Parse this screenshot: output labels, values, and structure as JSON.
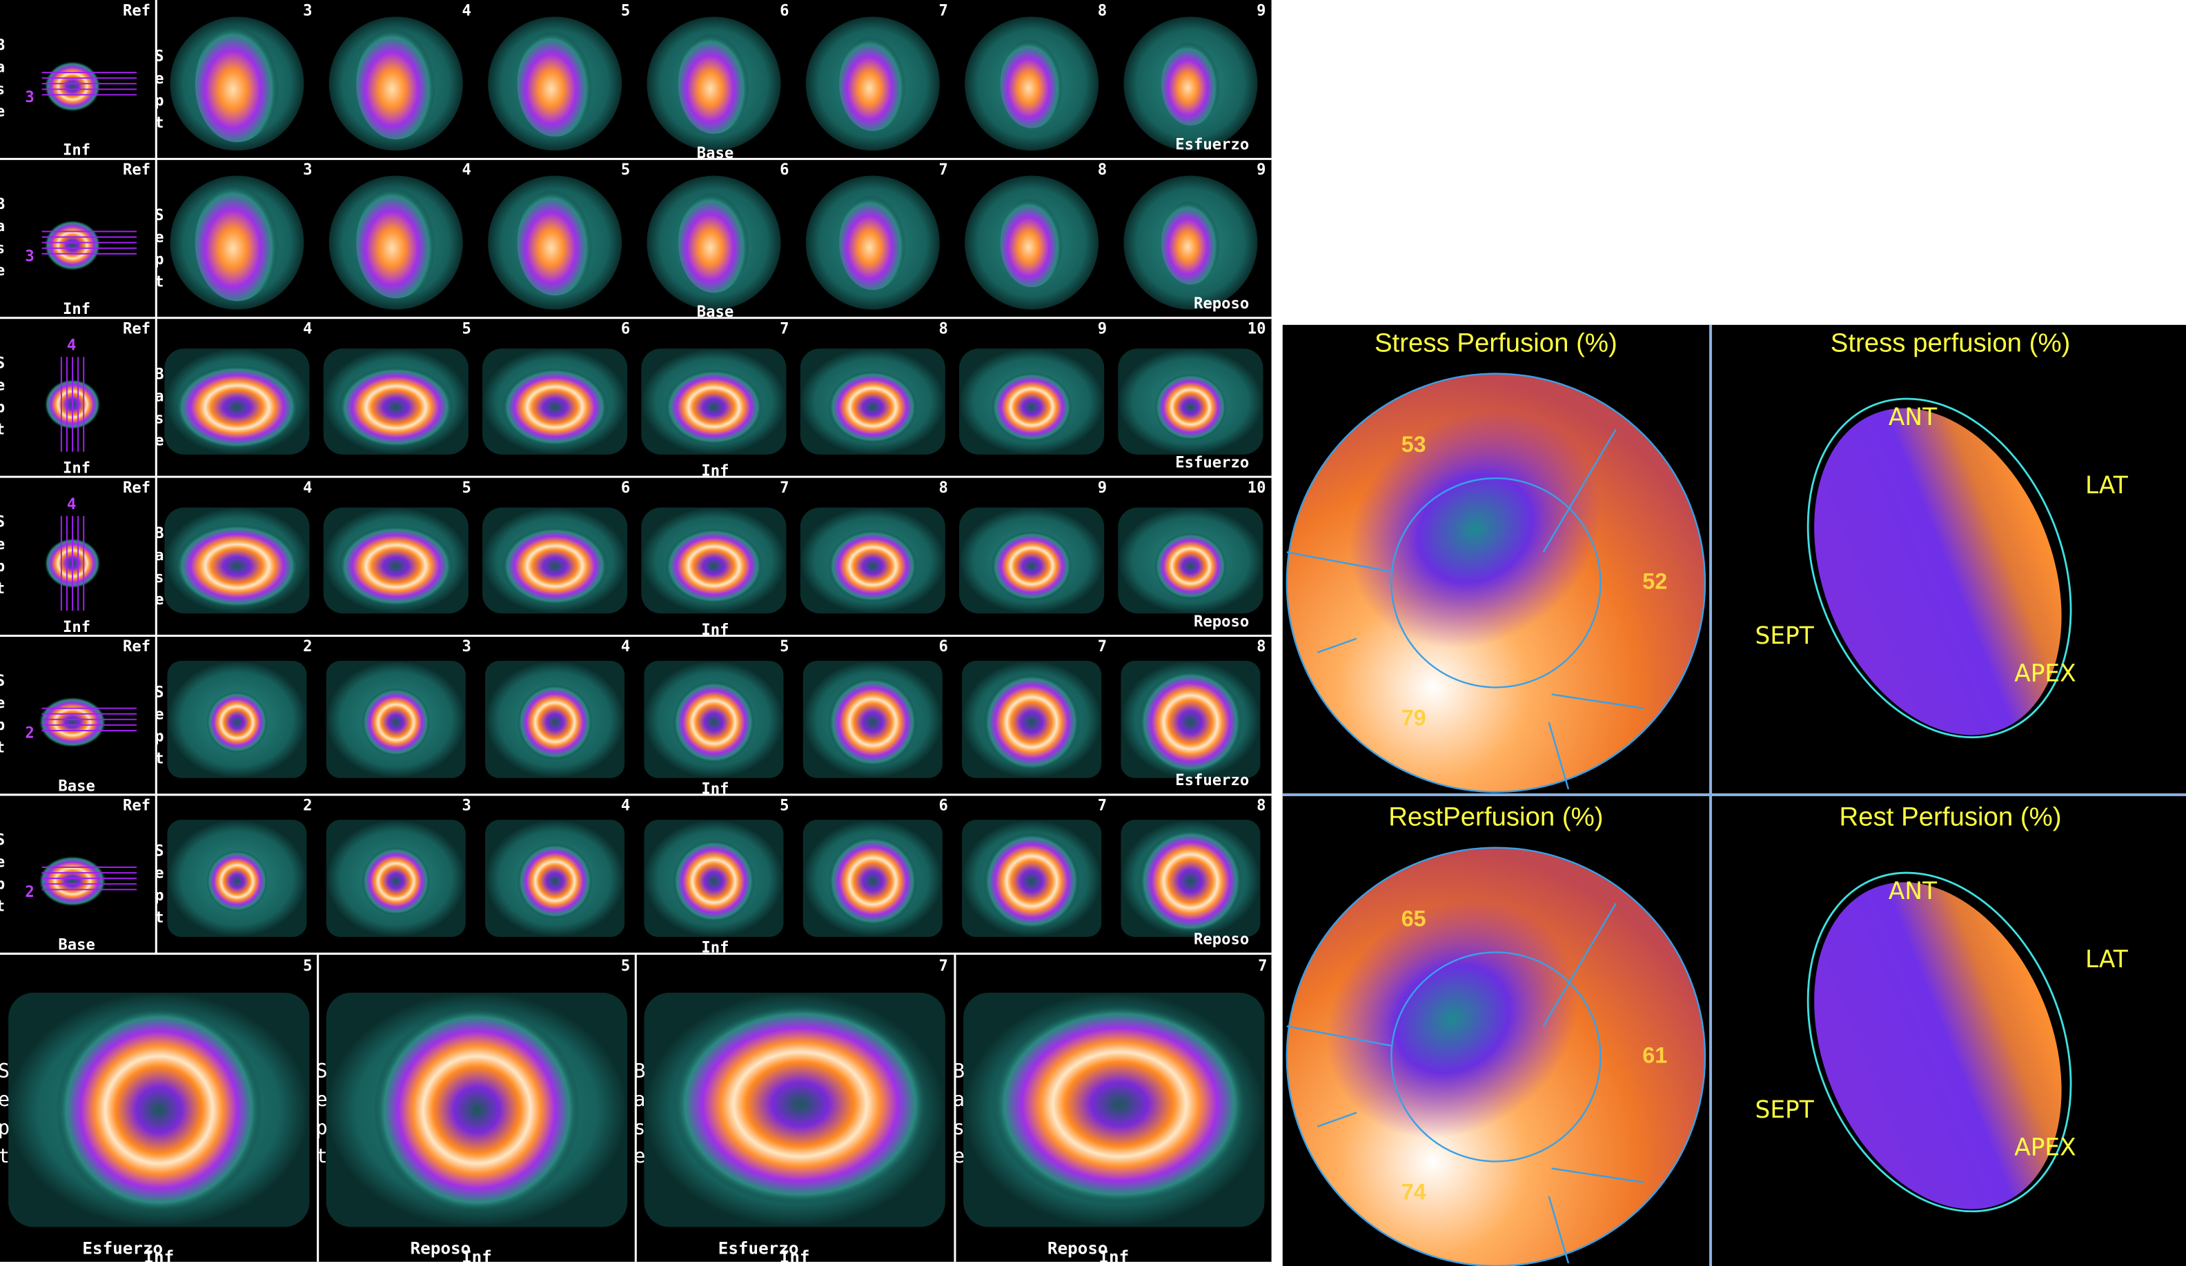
{
  "slice_rows": [
    {
      "ref": {
        "corner": "Ref",
        "side": "Base",
        "bottom": "Inf",
        "marker": 3
      },
      "numbers": [
        3,
        4,
        5,
        6,
        7,
        8,
        9
      ],
      "side": "Sept",
      "bottom": "Base",
      "corner": "Esfuerzo"
    },
    {
      "ref": {
        "corner": "Ref",
        "side": "Base",
        "bottom": "Inf",
        "marker": 3
      },
      "numbers": [
        3,
        4,
        5,
        6,
        7,
        8,
        9
      ],
      "side": "Sept",
      "bottom": "Base",
      "corner": "Reposo"
    },
    {
      "ref": {
        "corner": "Ref",
        "side": "Sept",
        "bottom": "Inf",
        "marker": 4
      },
      "numbers": [
        4,
        5,
        6,
        7,
        8,
        9,
        10
      ],
      "side": "Base",
      "bottom": "Inf",
      "corner": "Esfuerzo"
    },
    {
      "ref": {
        "corner": "Ref",
        "side": "Sept",
        "bottom": "Inf",
        "marker": 4
      },
      "numbers": [
        4,
        5,
        6,
        7,
        8,
        9,
        10
      ],
      "side": "Base",
      "bottom": "Inf",
      "corner": "Reposo"
    },
    {
      "ref": {
        "corner": "Ref",
        "side": "Sept",
        "bottom": "Base",
        "marker": 2
      },
      "numbers": [
        2,
        3,
        4,
        5,
        6,
        7,
        8
      ],
      "side": "Sept",
      "bottom": "Inf",
      "corner": "Esfuerzo"
    },
    {
      "ref": {
        "corner": "Ref",
        "side": "Sept",
        "bottom": "Base",
        "marker": 2
      },
      "numbers": [
        2,
        3,
        4,
        5,
        6,
        7,
        8
      ],
      "side": "Sept",
      "bottom": "Inf",
      "corner": "Reposo"
    }
  ],
  "large_views": [
    {
      "number": 5,
      "side": "Sept",
      "labels": [
        "Esfuerzo",
        "Inf"
      ]
    },
    {
      "number": 5,
      "side": "Sept",
      "labels": [
        "Reposo",
        "Inf"
      ]
    },
    {
      "number": 7,
      "side": "Base",
      "labels": [
        "Esfuerzo",
        "Inf"
      ]
    },
    {
      "number": 7,
      "side": "Base",
      "labels": [
        "Reposo",
        "Inf"
      ]
    }
  ],
  "polar_maps": [
    {
      "title": "Stress Perfusion (%)",
      "values": [
        53,
        52,
        79
      ]
    },
    {
      "title": "RestPerfusion (%)",
      "values": [
        65,
        61,
        74
      ]
    }
  ],
  "surface_views": [
    {
      "title": "Stress perfusion (%)",
      "labels": [
        "ANT",
        "LAT",
        "SEPT",
        "APEX"
      ]
    },
    {
      "title": "Rest Perfusion (%)",
      "labels": [
        "ANT",
        "LAT",
        "SEPT",
        "APEX"
      ]
    }
  ]
}
